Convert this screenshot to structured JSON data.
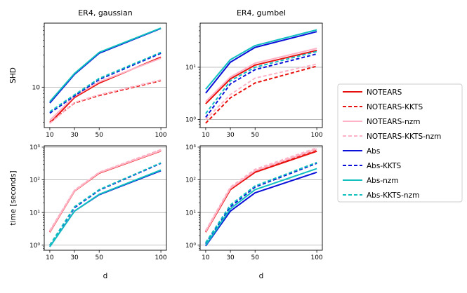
{
  "legend": [
    {
      "name": "NOTEARS",
      "color": "#e8100c",
      "dash": "solid"
    },
    {
      "name": "NOTEARS-KKTS",
      "color": "#e8100c",
      "dash": "dashed"
    },
    {
      "name": "NOTEARS-nzm",
      "color": "#ffb3c6",
      "dash": "solid"
    },
    {
      "name": "NOTEARS-KKTS-nzm",
      "color": "#ffb3c6",
      "dash": "dashed"
    },
    {
      "name": "Abs",
      "color": "#0a10d8",
      "dash": "solid"
    },
    {
      "name": "Abs-KKTS",
      "color": "#0a10d8",
      "dash": "dashed"
    },
    {
      "name": "Abs-nzm",
      "color": "#12c0c0",
      "dash": "solid"
    },
    {
      "name": "Abs-KKTS-nzm",
      "color": "#12c0c0",
      "dash": "dashed"
    }
  ],
  "chart_data": [
    {
      "id": "shd-gaussian",
      "type": "line",
      "title": "ER4, gaussian",
      "xlabel": "",
      "ylabel": "SHD",
      "yscale": "log",
      "ylim": [
        2.5,
        90
      ],
      "x": [
        10,
        30,
        50,
        100
      ],
      "xticks": [
        "10",
        "30",
        "50",
        "100"
      ],
      "yticks": [
        {
          "v": 10,
          "label": "10"
        }
      ],
      "series": [
        {
          "name": "NOTEARS",
          "values": [
            2.9,
            7.0,
            11.5,
            28
          ]
        },
        {
          "name": "NOTEARS-KKTS",
          "values": [
            3.0,
            5.8,
            7.5,
            12.5
          ]
        },
        {
          "name": "NOTEARS-nzm",
          "values": [
            3.2,
            7.3,
            12.0,
            27
          ]
        },
        {
          "name": "NOTEARS-KKTS-nzm",
          "values": [
            2.9,
            5.9,
            7.7,
            12.8
          ]
        },
        {
          "name": "Abs",
          "values": [
            5.8,
            15.5,
            32,
            75
          ]
        },
        {
          "name": "Abs-KKTS",
          "values": [
            4.1,
            7.4,
            13.0,
            32
          ]
        },
        {
          "name": "Abs-nzm",
          "values": [
            6.1,
            16.0,
            33,
            76
          ]
        },
        {
          "name": "Abs-KKTS-nzm",
          "values": [
            4.3,
            7.7,
            13.5,
            33
          ]
        }
      ]
    },
    {
      "id": "shd-gumbel",
      "type": "line",
      "title": "ER4, gumbel",
      "xlabel": "",
      "ylabel": "",
      "yscale": "log",
      "ylim": [
        0.7,
        70
      ],
      "x": [
        10,
        30,
        50,
        100
      ],
      "xticks": [
        "10",
        "30",
        "50",
        "100"
      ],
      "yticks": [
        {
          "v": 1,
          "label": "10⁰"
        },
        {
          "v": 10,
          "label": "10¹"
        }
      ],
      "series": [
        {
          "name": "NOTEARS",
          "values": [
            2.0,
            6.0,
            11.0,
            21
          ]
        },
        {
          "name": "NOTEARS-KKTS",
          "values": [
            0.85,
            2.6,
            5.0,
            10.5
          ]
        },
        {
          "name": "NOTEARS-nzm",
          "values": [
            2.2,
            6.5,
            12.0,
            23
          ]
        },
        {
          "name": "NOTEARS-KKTS-nzm",
          "values": [
            1.0,
            3.0,
            6.2,
            11.5
          ]
        },
        {
          "name": "Abs",
          "values": [
            3.2,
            12.5,
            24,
            48
          ]
        },
        {
          "name": "Abs-KKTS",
          "values": [
            1.1,
            4.8,
            9.0,
            18
          ]
        },
        {
          "name": "Abs-nzm",
          "values": [
            3.8,
            14.0,
            26,
            52
          ]
        },
        {
          "name": "Abs-KKTS-nzm",
          "values": [
            1.3,
            5.5,
            10.0,
            20
          ]
        }
      ]
    },
    {
      "id": "time-gaussian",
      "type": "line",
      "title": "",
      "xlabel": "d",
      "ylabel": "time [seconds]",
      "yscale": "log",
      "ylim": [
        0.7,
        1100
      ],
      "x": [
        10,
        30,
        50,
        100
      ],
      "xticks": [
        "10",
        "30",
        "50",
        "100"
      ],
      "yticks": [
        {
          "v": 1,
          "label": "10⁰"
        },
        {
          "v": 10,
          "label": "10¹"
        },
        {
          "v": 100,
          "label": "10²"
        },
        {
          "v": 1000,
          "label": "10³"
        }
      ],
      "series": [
        {
          "name": "NOTEARS",
          "values": [
            2.5,
            45,
            160,
            760
          ]
        },
        {
          "name": "NOTEARS-KKTS",
          "values": [
            2.7,
            47,
            165,
            820
          ]
        },
        {
          "name": "NOTEARS-nzm",
          "values": [
            2.6,
            46,
            165,
            780
          ]
        },
        {
          "name": "NOTEARS-KKTS-nzm",
          "values": [
            2.8,
            48,
            170,
            840
          ]
        },
        {
          "name": "Abs",
          "values": [
            0.9,
            11,
            35,
            190
          ]
        },
        {
          "name": "Abs-KKTS",
          "values": [
            1.0,
            14,
            48,
            320
          ]
        },
        {
          "name": "Abs-nzm",
          "values": [
            0.9,
            11,
            36,
            200
          ]
        },
        {
          "name": "Abs-KKTS-nzm",
          "values": [
            1.0,
            15,
            50,
            330
          ]
        }
      ]
    },
    {
      "id": "time-gumbel",
      "type": "line",
      "title": "",
      "xlabel": "d",
      "ylabel": "",
      "yscale": "log",
      "ylim": [
        0.7,
        1100
      ],
      "x": [
        10,
        30,
        50,
        100
      ],
      "xticks": [
        "10",
        "30",
        "50",
        "100"
      ],
      "yticks": [
        {
          "v": 1,
          "label": "10⁰"
        },
        {
          "v": 10,
          "label": "10¹"
        },
        {
          "v": 100,
          "label": "10²"
        },
        {
          "v": 1000,
          "label": "10³"
        }
      ],
      "series": [
        {
          "name": "NOTEARS",
          "values": [
            2.5,
            50,
            170,
            750
          ]
        },
        {
          "name": "NOTEARS-KKTS",
          "values": [
            2.7,
            55,
            180,
            850
          ]
        },
        {
          "name": "NOTEARS-nzm",
          "values": [
            2.6,
            55,
            190,
            880
          ]
        },
        {
          "name": "NOTEARS-KKTS-nzm",
          "values": [
            2.8,
            60,
            210,
            950
          ]
        },
        {
          "name": "Abs",
          "values": [
            0.95,
            11,
            40,
            170
          ]
        },
        {
          "name": "Abs-KKTS",
          "values": [
            1.1,
            15,
            60,
            320
          ]
        },
        {
          "name": "Abs-nzm",
          "values": [
            1.0,
            13,
            50,
            220
          ]
        },
        {
          "name": "Abs-KKTS-nzm",
          "values": [
            1.2,
            17,
            65,
            340
          ]
        }
      ]
    }
  ]
}
